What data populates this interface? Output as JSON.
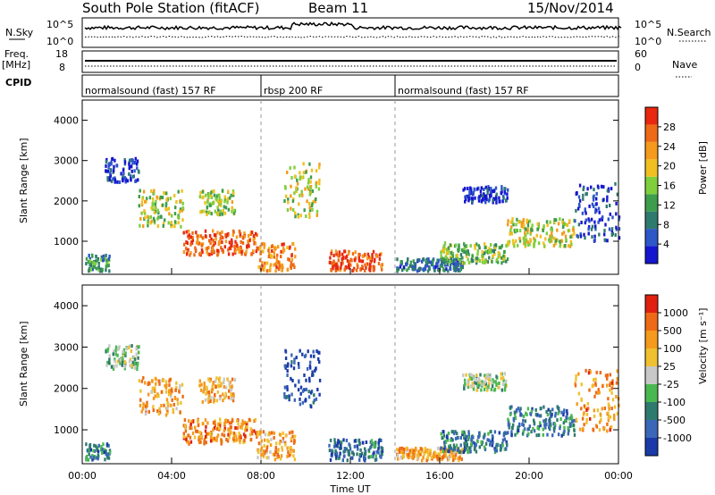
{
  "header": {
    "station": "South Pole Station (fitACF)",
    "beam": "Beam 11",
    "date": "15/Nov/2014"
  },
  "top_panels": {
    "nsky_label": "N.Sky",
    "nsky_ticks": [
      "10^5",
      "10^0"
    ],
    "nsearch_label": "N.Search",
    "nsearch_ticks": [
      "10^5",
      "10^0"
    ],
    "freq_label": "Freq.",
    "freq_unit": "[MHz]",
    "freq_ticks": [
      "18",
      "8"
    ],
    "nave_label": "Nave",
    "nave_ticks": [
      "60",
      "0"
    ],
    "cpid_label": "CPID",
    "cpid_segments": [
      {
        "label": "normalsound (fast) 157 RF",
        "start_hour": 0,
        "end_hour": 8
      },
      {
        "label": "rbsp 200 RF",
        "start_hour": 8,
        "end_hour": 14
      },
      {
        "label": "normalsound (fast) 157 RF",
        "start_hour": 14,
        "end_hour": 24
      }
    ]
  },
  "chart_data": [
    {
      "type": "heatmap",
      "quantity": "Power",
      "ylabel": "Slant Range [km]",
      "xlim_hours": [
        0,
        24
      ],
      "ylim": [
        180,
        4500
      ],
      "yticks": [
        "1000",
        "2000",
        "3000",
        "4000"
      ],
      "colorbar": {
        "label": "Power [dB]",
        "ticks": [
          "28",
          "24",
          "20",
          "16",
          "12",
          "8",
          "4"
        ],
        "colors": [
          "#1515d0",
          "#2e57c8",
          "#2f7a6e",
          "#3d9d4d",
          "#7fcf3c",
          "#f0c020",
          "#f59a1c",
          "#ee6a16",
          "#e8280f"
        ]
      },
      "echo_regions": [
        {
          "t": [
            0.1,
            1.2
          ],
          "r": [
            300,
            700
          ],
          "level": 0.35
        },
        {
          "t": [
            1.0,
            2.5
          ],
          "r": [
            2500,
            3100
          ],
          "level": 0.1
        },
        {
          "t": [
            2.5,
            4.5
          ],
          "r": [
            1400,
            2300
          ],
          "level": 0.55
        },
        {
          "t": [
            4.5,
            7.8
          ],
          "r": [
            700,
            1300
          ],
          "level": 0.85
        },
        {
          "t": [
            5.2,
            6.8
          ],
          "r": [
            1700,
            2300
          ],
          "level": 0.5
        },
        {
          "t": [
            7.8,
            9.5
          ],
          "r": [
            300,
            1000
          ],
          "level": 0.75
        },
        {
          "t": [
            9.0,
            10.6
          ],
          "r": [
            1600,
            3000
          ],
          "level": 0.55
        },
        {
          "t": [
            11.0,
            13.4
          ],
          "r": [
            300,
            800
          ],
          "level": 0.9
        },
        {
          "t": [
            14.0,
            17.0
          ],
          "r": [
            300,
            600
          ],
          "level": 0.25
        },
        {
          "t": [
            16.0,
            19.0
          ],
          "r": [
            500,
            1000
          ],
          "level": 0.45
        },
        {
          "t": [
            17.0,
            19.0
          ],
          "r": [
            2000,
            2400
          ],
          "level": 0.1
        },
        {
          "t": [
            19.0,
            22.0
          ],
          "r": [
            900,
            1600
          ],
          "level": 0.55
        },
        {
          "t": [
            22.0,
            24.0
          ],
          "r": [
            1000,
            2500
          ],
          "level": 0.15
        }
      ]
    },
    {
      "type": "heatmap",
      "quantity": "Velocity",
      "ylabel": "Slant Range [km]",
      "xlabel": "Time UT",
      "xlim_hours": [
        0,
        24
      ],
      "xticks": [
        "00:00",
        "04:00",
        "08:00",
        "12:00",
        "16:00",
        "20:00",
        "00:00"
      ],
      "ylim": [
        180,
        4500
      ],
      "yticks": [
        "1000",
        "2000",
        "3000",
        "4000"
      ],
      "colorbar": {
        "label": "Velocity [m s⁻¹]",
        "ticks": [
          "1000",
          "500",
          "100",
          "25",
          "-25",
          "-100",
          "-500",
          "-1000"
        ],
        "colors": [
          "#1a3aa8",
          "#3a67b8",
          "#2f7a6e",
          "#4ab850",
          "#c8c8c8",
          "#f0c030",
          "#f59a1c",
          "#ee6a16",
          "#e02010"
        ]
      },
      "echo_regions": [
        {
          "t": [
            0.1,
            1.2
          ],
          "r": [
            300,
            700
          ],
          "level": 0.25
        },
        {
          "t": [
            1.0,
            2.5
          ],
          "r": [
            2500,
            3100
          ],
          "level": 0.45
        },
        {
          "t": [
            2.5,
            4.5
          ],
          "r": [
            1400,
            2300
          ],
          "level": 0.7
        },
        {
          "t": [
            4.5,
            7.8
          ],
          "r": [
            700,
            1300
          ],
          "level": 0.75
        },
        {
          "t": [
            5.2,
            6.8
          ],
          "r": [
            1700,
            2300
          ],
          "level": 0.65
        },
        {
          "t": [
            7.8,
            9.5
          ],
          "r": [
            300,
            1000
          ],
          "level": 0.7
        },
        {
          "t": [
            9.0,
            10.6
          ],
          "r": [
            1600,
            3000
          ],
          "level": 0.1
        },
        {
          "t": [
            11.0,
            13.4
          ],
          "r": [
            300,
            800
          ],
          "level": 0.2
        },
        {
          "t": [
            14.0,
            17.0
          ],
          "r": [
            300,
            600
          ],
          "level": 0.7
        },
        {
          "t": [
            16.0,
            19.0
          ],
          "r": [
            500,
            1000
          ],
          "level": 0.25
        },
        {
          "t": [
            17.0,
            19.0
          ],
          "r": [
            2000,
            2400
          ],
          "level": 0.45
        },
        {
          "t": [
            19.0,
            22.0
          ],
          "r": [
            900,
            1600
          ],
          "level": 0.25
        },
        {
          "t": [
            22.0,
            24.0
          ],
          "r": [
            1000,
            2500
          ],
          "level": 0.75
        }
      ]
    }
  ]
}
